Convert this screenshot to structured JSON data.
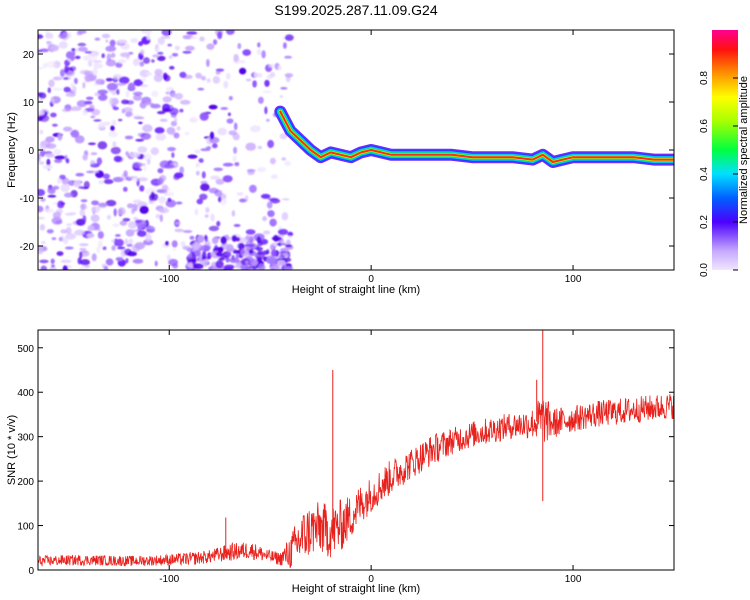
{
  "figure_title": "S199.2025.287.11.09.G24",
  "colors": {
    "snr_line": "#e8211c",
    "axis": "#000000",
    "background": "#ffffff",
    "low_amplitude": "#7a2bff",
    "high_amplitude": "#ff2020"
  },
  "chart_data": [
    {
      "type": "heatmap",
      "title": "S199.2025.287.11.09.G24",
      "xlabel": "Height of straight line (km)",
      "ylabel": "Frequency (Hz)",
      "xlim": [
        -165,
        150
      ],
      "ylim": [
        -25,
        25
      ],
      "x_ticks": [
        -100,
        0,
        100
      ],
      "y_ticks": [
        -20,
        -10,
        0,
        10,
        20
      ],
      "x_tick_labels": [
        "-100",
        "0",
        "100"
      ],
      "y_tick_labels": [
        "-20",
        "-10",
        "0",
        "10",
        "20"
      ],
      "colorbar": {
        "label": "Normalized spectral amplitude",
        "range": [
          0,
          1
        ],
        "ticks": [
          0.0,
          0.2,
          0.4,
          0.6,
          0.8
        ],
        "tick_labels": [
          "0.0",
          "0.2",
          "0.4",
          "0.6",
          "0.8"
        ],
        "colormap": "rainbow (violet to red)"
      },
      "ridge": {
        "description": "Doppler frequency ridge of highest amplitude",
        "x": [
          -45,
          -40,
          -35,
          -30,
          -25,
          -20,
          -15,
          -10,
          -5,
          0,
          10,
          20,
          30,
          40,
          50,
          60,
          70,
          80,
          85,
          90,
          100,
          110,
          120,
          130,
          140,
          150
        ],
        "frequency": [
          8,
          4,
          2,
          0,
          -1.5,
          -0.5,
          -1,
          -1.5,
          -0.5,
          0,
          -1,
          -1,
          -1,
          -1,
          -1.5,
          -1.5,
          -1.5,
          -2,
          -1,
          -2.5,
          -1.5,
          -1.5,
          -1.5,
          -1.5,
          -2,
          -2
        ]
      },
      "noise_regions": [
        {
          "description": "scattered low-amplitude noise",
          "x_range": [
            -165,
            -40
          ],
          "frequency_range": [
            -25,
            25
          ]
        },
        {
          "description": "noise burst at lower edge",
          "x_range": [
            -90,
            -40
          ],
          "frequency_range": [
            -25,
            -18
          ]
        }
      ]
    },
    {
      "type": "line",
      "xlabel": "Height of straight line (km)",
      "ylabel": "SNR (10 * v/v)",
      "xlim": [
        -165,
        150
      ],
      "ylim": [
        0,
        540
      ],
      "x_ticks": [
        -100,
        0,
        100
      ],
      "y_ticks": [
        0,
        100,
        200,
        300,
        400,
        500
      ],
      "x_tick_labels": [
        "-100",
        "0",
        "100"
      ],
      "y_tick_labels": [
        "0",
        "100",
        "200",
        "300",
        "400",
        "500"
      ],
      "series": [
        {
          "name": "SNR",
          "x": [
            -165,
            -150,
            -135,
            -120,
            -105,
            -90,
            -80,
            -70,
            -60,
            -50,
            -45,
            -40,
            -35,
            -30,
            -25,
            -20,
            -15,
            -10,
            -5,
            0,
            10,
            20,
            30,
            40,
            50,
            60,
            70,
            80,
            85,
            90,
            100,
            110,
            120,
            130,
            140,
            150
          ],
          "values": [
            20,
            22,
            22,
            20,
            22,
            25,
            30,
            40,
            45,
            30,
            25,
            40,
            70,
            90,
            95,
            85,
            100,
            120,
            150,
            170,
            210,
            240,
            270,
            290,
            305,
            315,
            325,
            330,
            340,
            330,
            340,
            350,
            355,
            360,
            365,
            370
          ],
          "noise_amplitude": [
            12,
            12,
            12,
            12,
            12,
            15,
            15,
            20,
            20,
            15,
            15,
            40,
            60,
            60,
            60,
            60,
            60,
            50,
            45,
            40,
            40,
            35,
            35,
            30,
            30,
            30,
            30,
            35,
            60,
            35,
            30,
            30,
            30,
            30,
            30,
            30
          ]
        }
      ],
      "spikes": [
        {
          "x": -72,
          "value": 118
        },
        {
          "x": -19,
          "value": 450
        },
        {
          "x": 82,
          "value": 428
        },
        {
          "x": 85,
          "value": 540
        },
        {
          "x": 85,
          "value": 155
        }
      ]
    }
  ]
}
